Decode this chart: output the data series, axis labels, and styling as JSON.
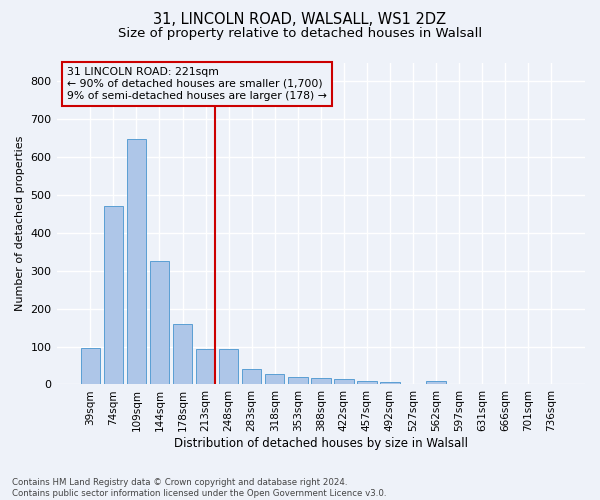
{
  "title1": "31, LINCOLN ROAD, WALSALL, WS1 2DZ",
  "title2": "Size of property relative to detached houses in Walsall",
  "xlabel": "Distribution of detached houses by size in Walsall",
  "ylabel": "Number of detached properties",
  "footer": "Contains HM Land Registry data © Crown copyright and database right 2024.\nContains public sector information licensed under the Open Government Licence v3.0.",
  "categories": [
    "39sqm",
    "74sqm",
    "109sqm",
    "144sqm",
    "178sqm",
    "213sqm",
    "248sqm",
    "283sqm",
    "318sqm",
    "353sqm",
    "388sqm",
    "422sqm",
    "457sqm",
    "492sqm",
    "527sqm",
    "562sqm",
    "597sqm",
    "631sqm",
    "666sqm",
    "701sqm",
    "736sqm"
  ],
  "values": [
    95,
    470,
    648,
    325,
    160,
    93,
    93,
    42,
    28,
    20,
    16,
    15,
    9,
    6,
    0,
    8,
    0,
    0,
    0,
    0,
    0
  ],
  "bar_color": "#aec6e8",
  "bar_edge_color": "#5a9fd4",
  "highlight_bar_index": 5,
  "highlight_color": "#cc0000",
  "annotation_text": "31 LINCOLN ROAD: 221sqm\n← 90% of detached houses are smaller (1,700)\n9% of semi-detached houses are larger (178) →",
  "annotation_box_color": "#cc0000",
  "ylim": [
    0,
    850
  ],
  "yticks": [
    0,
    100,
    200,
    300,
    400,
    500,
    600,
    700,
    800
  ],
  "bg_color": "#eef2f9",
  "grid_color": "#ffffff"
}
